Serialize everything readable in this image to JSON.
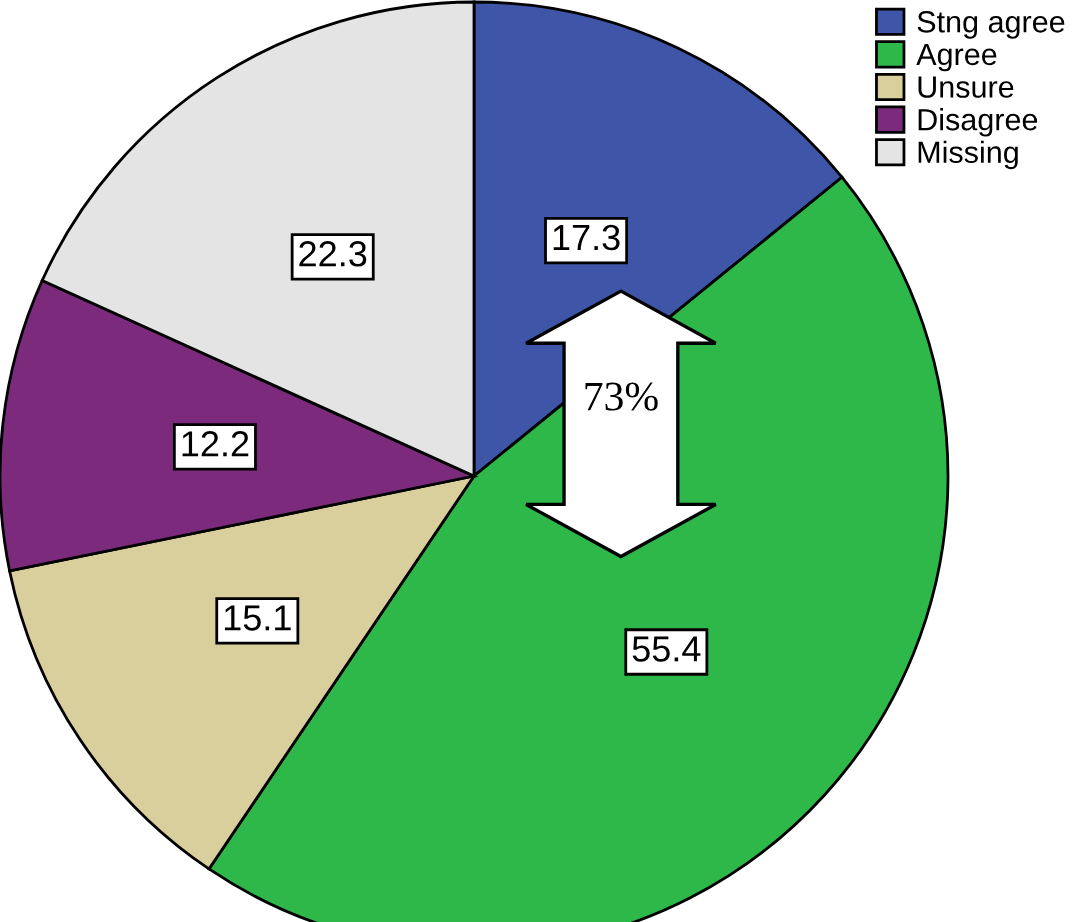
{
  "chart_data": {
    "type": "pie",
    "categories": [
      "Stng agree",
      "Agree",
      "Unsure",
      "Disagree",
      "Missing"
    ],
    "values": [
      17.3,
      55.4,
      15.1,
      12.2,
      22.3
    ],
    "colors": [
      "#3f56a8",
      "#2eb84a",
      "#d8cf9c",
      "#7b2a7c",
      "#e4e4e4"
    ],
    "data_labels": true,
    "legend": "top right",
    "annotations": [
      "73%"
    ]
  }
}
